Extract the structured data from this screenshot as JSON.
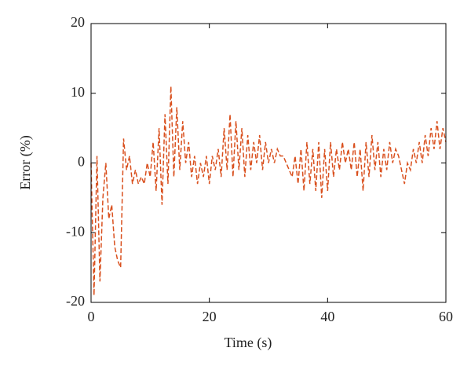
{
  "chart_data": {
    "type": "line",
    "xlabel": "Time (s)",
    "ylabel": "Error (%)",
    "xlim": [
      0,
      60
    ],
    "ylim": [
      -20,
      20
    ],
    "xticks": [
      0,
      20,
      40,
      60
    ],
    "yticks": [
      -20,
      -10,
      0,
      10,
      20
    ],
    "color": "#d9501e",
    "dashed": true,
    "x": [
      0,
      0.5,
      1,
      1.5,
      2,
      2.5,
      3,
      3.5,
      4,
      4.5,
      5,
      5.5,
      6,
      6.5,
      7,
      7.5,
      8,
      8.5,
      9,
      9.5,
      10,
      10.5,
      11,
      11.5,
      12,
      12.5,
      13,
      13.5,
      14,
      14.5,
      15,
      15.5,
      16,
      16.5,
      17,
      17.5,
      18,
      18.5,
      19,
      19.5,
      20,
      20.5,
      21,
      21.5,
      22,
      22.5,
      23,
      23.5,
      24,
      24.5,
      25,
      25.5,
      26,
      26.5,
      27,
      27.5,
      28,
      28.5,
      29,
      29.5,
      30,
      30.5,
      31,
      31.5,
      32,
      32.5,
      33,
      33.5,
      34,
      34.5,
      35,
      35.5,
      36,
      36.5,
      37,
      37.5,
      38,
      38.5,
      39,
      39.5,
      40,
      40.5,
      41,
      41.5,
      42,
      42.5,
      43,
      43.5,
      44,
      44.5,
      45,
      45.5,
      46,
      46.5,
      47,
      47.5,
      48,
      48.5,
      49,
      49.5,
      50,
      50.5,
      51,
      51.5,
      52,
      52.5,
      53,
      53.5,
      54,
      54.5,
      55,
      55.5,
      56,
      56.5,
      57,
      57.5,
      58,
      58.5,
      59,
      59.5,
      60
    ],
    "values": [
      0,
      -19,
      1,
      -17,
      -5,
      0,
      -8,
      -6,
      -12,
      -14,
      -15,
      3.5,
      -1,
      1,
      -3,
      -1,
      -3,
      -2,
      -3,
      0,
      -2,
      3,
      -4,
      5,
      -6,
      7,
      -3,
      11,
      -2,
      8,
      -1,
      6,
      0,
      3,
      -2,
      1,
      -3,
      0,
      -2,
      1,
      -3,
      1,
      -1,
      2,
      -2,
      5,
      -1,
      7,
      -2,
      6,
      -1,
      5,
      -2,
      4,
      -1,
      3,
      0,
      4,
      -1,
      3,
      0,
      2,
      0,
      2,
      1,
      1,
      0,
      -1,
      -2,
      1,
      -3,
      2,
      -4,
      3,
      -3,
      2,
      -4,
      3,
      -5,
      2,
      -4,
      3,
      -2,
      2,
      -1,
      3,
      0,
      2,
      -1,
      3,
      -2,
      2,
      -4,
      3,
      -2,
      4,
      -1,
      3,
      -2,
      2,
      -1,
      3,
      0,
      2,
      1,
      -1,
      -3,
      0,
      -1,
      2,
      0,
      3,
      0,
      4,
      1,
      5,
      2,
      6,
      2,
      5,
      3
    ]
  }
}
